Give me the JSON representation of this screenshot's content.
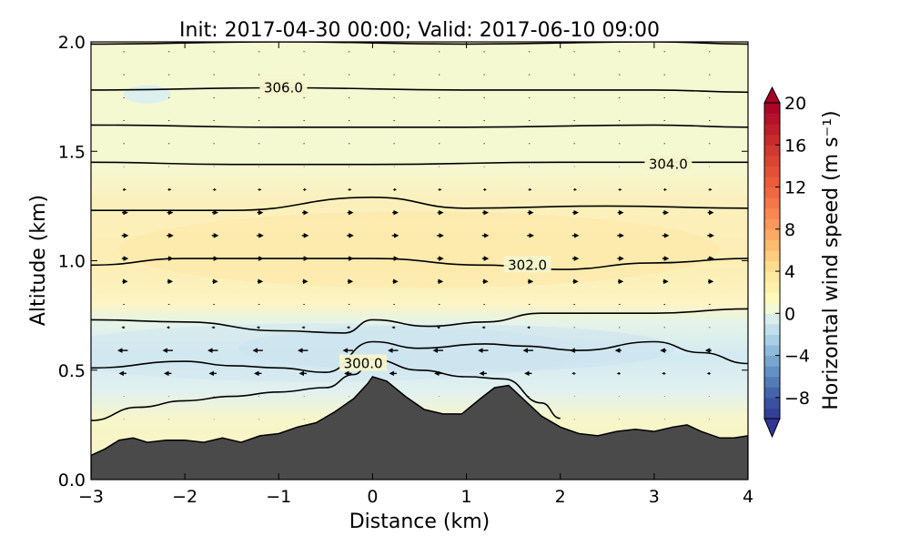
{
  "chart_data": {
    "type": "contour",
    "title": "Init: 2017-04-30 00:00; Valid: 2017-06-10 09:00",
    "xlabel": "Distance (km)",
    "ylabel": "Altitude (km)",
    "xlim": [
      -3,
      4
    ],
    "ylim": [
      0,
      2
    ],
    "x_ticks": [
      "−3",
      "−2",
      "−1",
      "0",
      "1",
      "2",
      "3",
      "4"
    ],
    "y_ticks": [
      "0.0",
      "0.5",
      "1.0",
      "1.5",
      "2.0"
    ],
    "colorbar": {
      "label": "Horizontal wind speed (m s⁻¹)",
      "range": [
        -10,
        20
      ],
      "ticks": [
        "−8",
        "−4",
        "0",
        "4",
        "8",
        "12",
        "16",
        "20"
      ],
      "extend": "both",
      "colormap": "RdYlBu_r"
    },
    "contour_labels": [
      {
        "text": "306.0",
        "x": -0.95,
        "y": 1.79
      },
      {
        "text": "304.0",
        "x": 3.15,
        "y": 1.44
      },
      {
        "text": "302.0",
        "x": 1.65,
        "y": 0.98
      },
      {
        "text": "300.0",
        "x": -0.1,
        "y": 0.53
      }
    ],
    "terrain": [
      [
        -3.0,
        0.11
      ],
      [
        -2.85,
        0.14
      ],
      [
        -2.7,
        0.18
      ],
      [
        -2.55,
        0.19
      ],
      [
        -2.4,
        0.17
      ],
      [
        -2.2,
        0.18
      ],
      [
        -2.0,
        0.18
      ],
      [
        -1.8,
        0.17
      ],
      [
        -1.6,
        0.19
      ],
      [
        -1.4,
        0.17
      ],
      [
        -1.2,
        0.2
      ],
      [
        -1.0,
        0.21
      ],
      [
        -0.8,
        0.24
      ],
      [
        -0.6,
        0.26
      ],
      [
        -0.4,
        0.31
      ],
      [
        -0.2,
        0.37
      ],
      [
        -0.05,
        0.44
      ],
      [
        0.0,
        0.47
      ],
      [
        0.15,
        0.45
      ],
      [
        0.35,
        0.38
      ],
      [
        0.55,
        0.32
      ],
      [
        0.75,
        0.3
      ],
      [
        0.95,
        0.3
      ],
      [
        1.15,
        0.37
      ],
      [
        1.3,
        0.42
      ],
      [
        1.45,
        0.43
      ],
      [
        1.6,
        0.37
      ],
      [
        1.8,
        0.29
      ],
      [
        2.0,
        0.24
      ],
      [
        2.2,
        0.21
      ],
      [
        2.4,
        0.2
      ],
      [
        2.6,
        0.22
      ],
      [
        2.8,
        0.23
      ],
      [
        3.0,
        0.22
      ],
      [
        3.2,
        0.24
      ],
      [
        3.35,
        0.25
      ],
      [
        3.5,
        0.22
      ],
      [
        3.7,
        0.19
      ],
      [
        3.85,
        0.19
      ],
      [
        4.0,
        0.2
      ]
    ],
    "theta_contours": [
      [
        [
          -3.0,
          1.99
        ],
        [
          -1.0,
          2.0
        ],
        [
          1.0,
          1.99
        ],
        [
          3.0,
          2.0
        ],
        [
          4.0,
          1.99
        ]
      ],
      [
        [
          -3.0,
          1.78
        ],
        [
          -1.0,
          1.79
        ],
        [
          1.0,
          1.78
        ],
        [
          3.0,
          1.78
        ],
        [
          4.0,
          1.77
        ]
      ],
      [
        [
          -3.0,
          1.62
        ],
        [
          -1.0,
          1.61
        ],
        [
          1.0,
          1.61
        ],
        [
          3.0,
          1.62
        ],
        [
          4.0,
          1.61
        ]
      ],
      [
        [
          -3.0,
          1.45
        ],
        [
          -1.5,
          1.44
        ],
        [
          0.0,
          1.44
        ],
        [
          2.0,
          1.45
        ],
        [
          4.0,
          1.45
        ]
      ],
      [
        [
          -3.0,
          1.23
        ],
        [
          -1.5,
          1.23
        ],
        [
          0.0,
          1.29
        ],
        [
          1.0,
          1.24
        ],
        [
          2.5,
          1.25
        ],
        [
          4.0,
          1.24
        ]
      ],
      [
        [
          -3.0,
          0.98
        ],
        [
          -2.0,
          1.01
        ],
        [
          -1.0,
          1.01
        ],
        [
          0.0,
          1.01
        ],
        [
          1.2,
          0.98
        ],
        [
          2.0,
          0.96
        ],
        [
          3.0,
          0.99
        ],
        [
          4.0,
          1.01
        ]
      ],
      [
        [
          -3.0,
          0.73
        ],
        [
          -2.0,
          0.72
        ],
        [
          -1.0,
          0.68
        ],
        [
          -0.3,
          0.67
        ],
        [
          0.0,
          0.73
        ],
        [
          0.6,
          0.7
        ],
        [
          1.2,
          0.72
        ],
        [
          1.8,
          0.76
        ],
        [
          3.0,
          0.76
        ],
        [
          4.0,
          0.78
        ]
      ],
      [
        [
          -3.0,
          0.51
        ],
        [
          -2.0,
          0.54
        ],
        [
          -1.5,
          0.52
        ],
        [
          -1.0,
          0.51
        ],
        [
          -0.5,
          0.49
        ],
        [
          0.0,
          0.63
        ],
        [
          0.5,
          0.6
        ],
        [
          1.2,
          0.62
        ],
        [
          1.6,
          0.61
        ],
        [
          2.2,
          0.59
        ],
        [
          3.0,
          0.63
        ],
        [
          3.5,
          0.58
        ],
        [
          4.0,
          0.53
        ]
      ],
      [
        [
          -3.0,
          0.27
        ],
        [
          -2.5,
          0.33
        ],
        [
          -2.0,
          0.36
        ],
        [
          -1.5,
          0.38
        ],
        [
          -1.0,
          0.4
        ],
        [
          -0.5,
          0.42
        ],
        [
          -0.2,
          0.48
        ],
        [
          0.0,
          0.55
        ],
        [
          0.5,
          0.5
        ],
        [
          1.0,
          0.47
        ],
        [
          1.4,
          0.46
        ],
        [
          1.8,
          0.35
        ],
        [
          2.0,
          0.28
        ]
      ]
    ]
  }
}
